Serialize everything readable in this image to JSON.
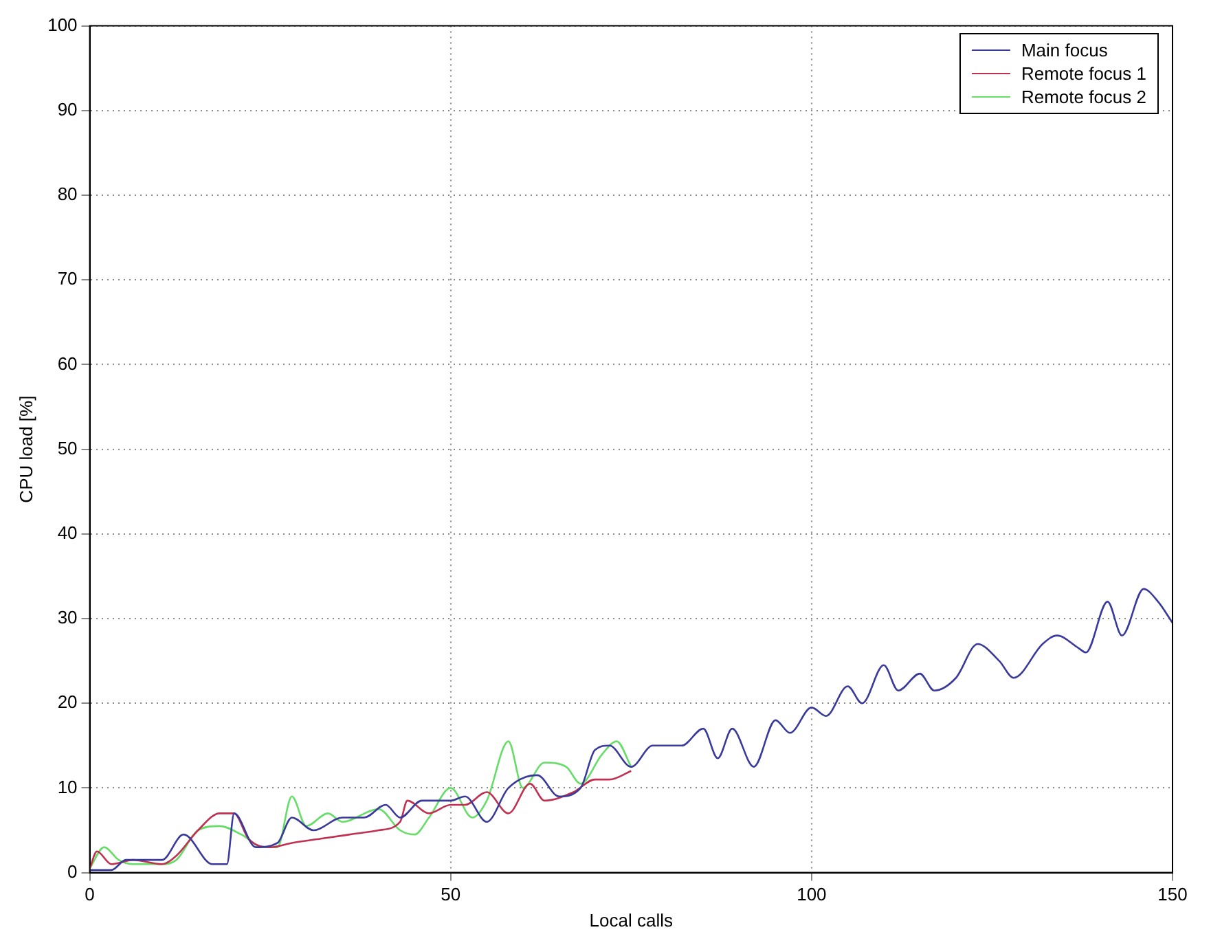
{
  "chart_data": {
    "type": "line",
    "xlabel": "Local calls",
    "ylabel": "CPU load [%]",
    "xlim": [
      0,
      150
    ],
    "xticks": [
      0,
      50,
      100,
      150
    ],
    "ylim": [
      0,
      100
    ],
    "yticks": [
      0,
      10,
      20,
      30,
      40,
      50,
      60,
      70,
      80,
      90,
      100
    ],
    "grid": true,
    "legend": "top right",
    "marker": "none",
    "line_style": "solid",
    "series": [
      {
        "name": "Main focus",
        "color": "#3a3a9a",
        "x": [
          0,
          3,
          5,
          10,
          13,
          17,
          19,
          20,
          23,
          26,
          28,
          31,
          35,
          38,
          41,
          43,
          46,
          50,
          52,
          55,
          58,
          62,
          65,
          68,
          70,
          72,
          75,
          78,
          82,
          85,
          87,
          89,
          92,
          95,
          97,
          100,
          102,
          105,
          107,
          110,
          112,
          115,
          117,
          120,
          123,
          126,
          128,
          132,
          134,
          137,
          138,
          141,
          143,
          146,
          148,
          150
        ],
        "values": [
          0.3,
          0.3,
          1.5,
          1.5,
          4.5,
          1,
          1,
          7,
          3,
          3.5,
          6.5,
          5,
          6.5,
          6.5,
          8,
          6.5,
          8.5,
          8.5,
          9,
          6,
          10,
          11.5,
          9,
          10,
          14.5,
          15,
          12.5,
          15,
          15,
          17,
          13.5,
          17,
          12.5,
          18,
          16.5,
          19.5,
          18.5,
          22,
          20,
          24.5,
          21.5,
          23.5,
          21.5,
          23,
          27,
          25,
          23,
          27,
          28,
          26.5,
          26,
          32,
          28,
          33.5,
          32,
          29.5
        ]
      },
      {
        "name": "Remote focus 1",
        "color": "#c03050",
        "x": [
          0,
          1,
          3,
          6,
          10,
          12,
          15,
          18,
          20,
          22,
          25,
          28,
          32,
          36,
          40,
          43,
          44,
          47,
          50,
          52,
          55,
          58,
          61,
          63,
          67,
          70,
          72,
          75
        ],
        "values": [
          0.5,
          2.5,
          1,
          1.5,
          1,
          2,
          5,
          7,
          7,
          4,
          3,
          3.5,
          4,
          4.5,
          5,
          6,
          8.5,
          7,
          8,
          8,
          9.5,
          7,
          10.5,
          8.5,
          9.5,
          11,
          11,
          12
        ]
      },
      {
        "name": "Remote focus 2",
        "color": "#66dd66",
        "x": [
          0,
          2,
          4,
          6,
          10,
          12,
          15,
          18,
          21,
          24,
          26,
          28,
          30,
          33,
          35,
          40,
          43,
          45,
          47,
          50,
          53,
          55,
          58,
          60,
          63,
          66,
          68,
          71,
          73,
          75
        ],
        "values": [
          0.5,
          3,
          1.5,
          1,
          1,
          1.5,
          5,
          5.5,
          4.5,
          3,
          3,
          9,
          5.5,
          7,
          6,
          7.5,
          5,
          4.5,
          6.5,
          10,
          6.5,
          8.5,
          15.5,
          10,
          13,
          12.5,
          10.5,
          14,
          15.5,
          12.5
        ]
      }
    ]
  }
}
